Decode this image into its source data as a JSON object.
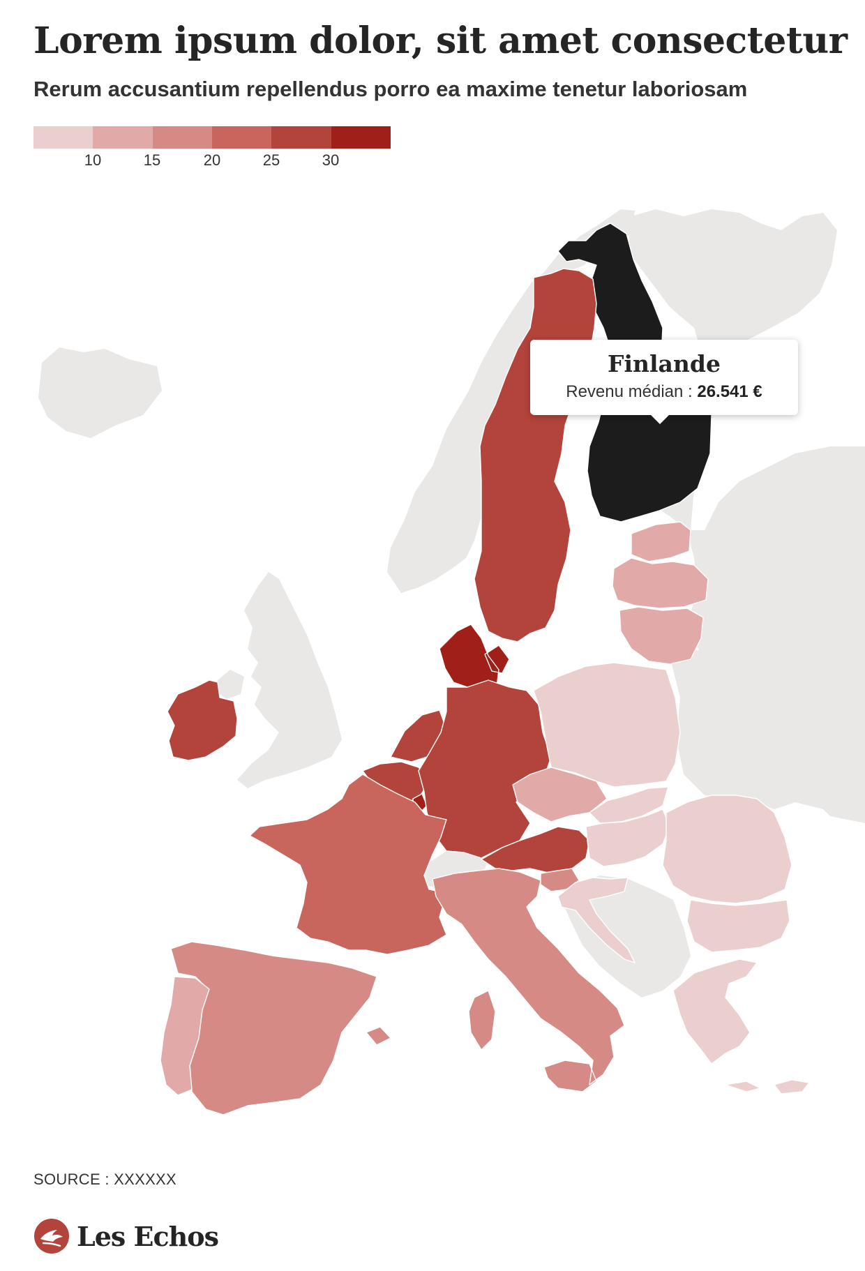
{
  "title": "Lorem ipsum dolor, sit amet consectetur",
  "subtitle": "Rerum accusantium repellendus porro ea maxime tenetur laboriosam",
  "legend": {
    "colors": [
      "#ebcfcf",
      "#e1aaa8",
      "#d58a86",
      "#c8665e",
      "#b3443b",
      "#a11f19"
    ],
    "ticks": [
      "10",
      "15",
      "20",
      "25",
      "30"
    ]
  },
  "map": {
    "no_data_color": "#e9e8e6",
    "highlight_color": "#1c1c1c",
    "countries": [
      {
        "id": "finland",
        "highlighted": true
      },
      {
        "id": "sweden",
        "bin": 4
      },
      {
        "id": "denmark",
        "bin": 5
      },
      {
        "id": "ireland",
        "bin": 4
      },
      {
        "id": "netherlands",
        "bin": 4
      },
      {
        "id": "belgium",
        "bin": 4
      },
      {
        "id": "luxembourg",
        "bin": 5
      },
      {
        "id": "germany",
        "bin": 4
      },
      {
        "id": "austria",
        "bin": 4
      },
      {
        "id": "france",
        "bin": 3
      },
      {
        "id": "italy",
        "bin": 2
      },
      {
        "id": "spain",
        "bin": 2
      },
      {
        "id": "portugal",
        "bin": 1
      },
      {
        "id": "czechia",
        "bin": 1
      },
      {
        "id": "slovenia",
        "bin": 2
      },
      {
        "id": "estonia",
        "bin": 1
      },
      {
        "id": "latvia",
        "bin": 1
      },
      {
        "id": "lithuania",
        "bin": 1
      },
      {
        "id": "poland",
        "bin": 0
      },
      {
        "id": "slovakia",
        "bin": 0
      },
      {
        "id": "hungary",
        "bin": 0
      },
      {
        "id": "croatia",
        "bin": 0
      },
      {
        "id": "romania",
        "bin": 0
      },
      {
        "id": "bulgaria",
        "bin": 0
      },
      {
        "id": "greece",
        "bin": 0
      },
      {
        "id": "cyprus",
        "bin": 0
      }
    ]
  },
  "tooltip": {
    "country": "Finlande",
    "label": "Revenu médian : ",
    "value": "26.541 €"
  },
  "source": "SOURCE : XXXXXX",
  "brand": "Les Echos"
}
